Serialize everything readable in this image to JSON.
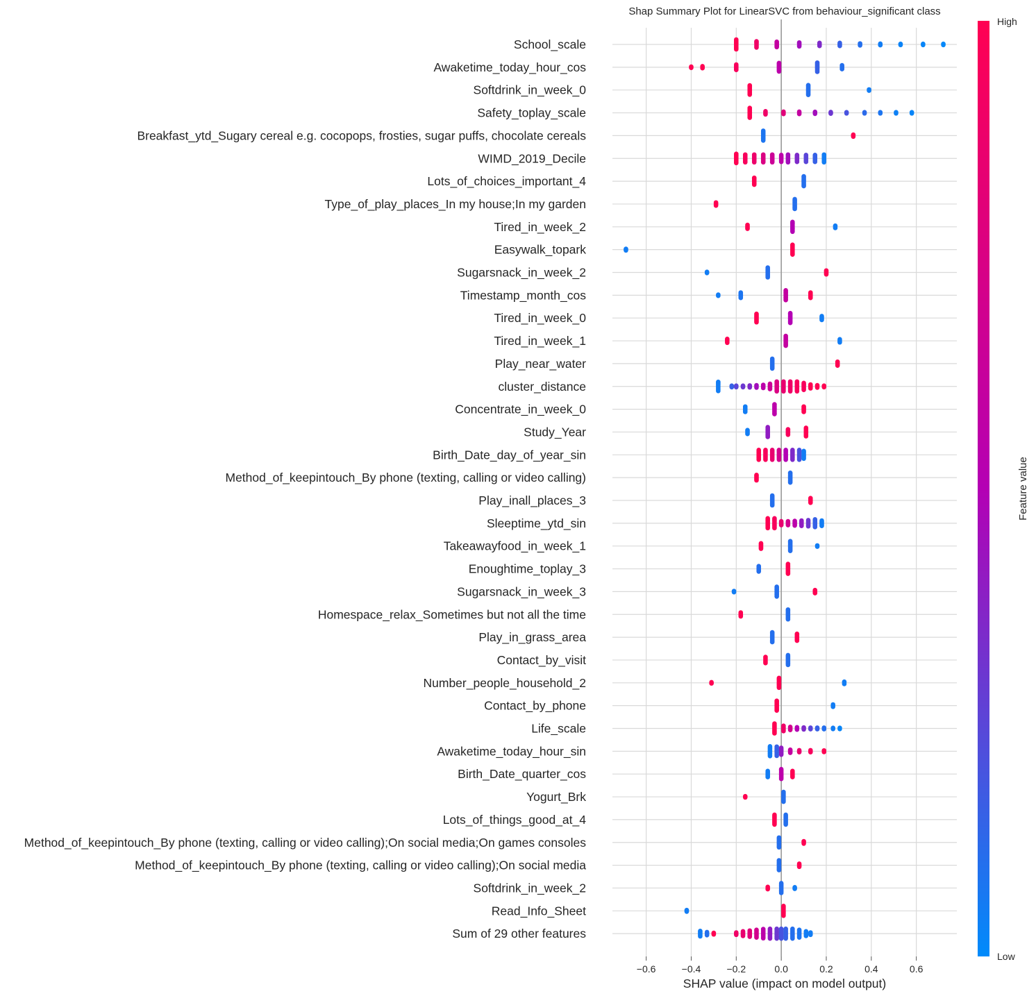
{
  "chart_data": {
    "type": "scatter",
    "subtype": "shap-beeswarm",
    "title": "Shap Summary Plot for LinearSVC from behaviour_significant class",
    "xlabel": "SHAP value (impact on model output)",
    "ylabel": "",
    "xlim": [
      -0.75,
      0.78
    ],
    "xticks": [
      -0.6,
      -0.4,
      -0.2,
      0.0,
      0.2,
      0.4,
      0.6
    ],
    "xtick_labels": [
      "−0.6",
      "−0.4",
      "−0.2",
      "0.0",
      "0.2",
      "0.4",
      "0.6"
    ],
    "grid": true,
    "colorbar": {
      "title": "Feature value",
      "high_label": "High",
      "low_label": "Low",
      "low_color": "#008bfb",
      "high_color": "#ff0052"
    },
    "features": [
      {
        "name": "School_scale",
        "points": [
          [
            -0.2,
            1,
            30
          ],
          [
            -0.11,
            0.9,
            16
          ],
          [
            -0.02,
            0.6,
            14
          ],
          [
            0.08,
            0.45,
            10
          ],
          [
            0.17,
            0.35,
            8
          ],
          [
            0.26,
            0.15,
            8
          ],
          [
            0.35,
            0.1,
            5
          ],
          [
            0.44,
            0.05,
            4
          ],
          [
            0.53,
            0.03,
            3
          ],
          [
            0.63,
            0.02,
            3
          ],
          [
            0.72,
            0.01,
            3
          ]
        ]
      },
      {
        "name": "Awaketime_today_hour_cos",
        "points": [
          [
            -0.4,
            1,
            3
          ],
          [
            -0.35,
            1,
            5
          ],
          [
            -0.2,
            0.95,
            14
          ],
          [
            -0.01,
            0.55,
            22
          ],
          [
            0.16,
            0.15,
            24
          ],
          [
            0.27,
            0.1,
            10
          ]
        ]
      },
      {
        "name": "Softdrink_in_week_0",
        "points": [
          [
            -0.14,
            1,
            24
          ],
          [
            0.12,
            0.1,
            28
          ],
          [
            0.39,
            0.05,
            3
          ]
        ]
      },
      {
        "name": "Safety_toplay_scale",
        "points": [
          [
            -0.14,
            1,
            30
          ],
          [
            -0.07,
            0.9,
            8
          ],
          [
            0.01,
            0.8,
            6
          ],
          [
            0.08,
            0.6,
            6
          ],
          [
            0.15,
            0.45,
            5
          ],
          [
            0.22,
            0.3,
            4
          ],
          [
            0.29,
            0.2,
            3
          ],
          [
            0.37,
            0.12,
            3
          ],
          [
            0.44,
            0.08,
            3
          ],
          [
            0.51,
            0.04,
            3
          ],
          [
            0.58,
            0.02,
            3
          ]
        ]
      },
      {
        "name": "Breakfast_ytd_Sugary cereal e.g. cocopops, frosties, sugar puffs, chocolate cereals",
        "points": [
          [
            -0.08,
            0.08,
            30
          ],
          [
            0.32,
            1,
            5
          ]
        ]
      },
      {
        "name": "WIMD_2019_Decile",
        "points": [
          [
            -0.2,
            1,
            24
          ],
          [
            -0.16,
            0.95,
            20
          ],
          [
            -0.12,
            0.88,
            20
          ],
          [
            -0.08,
            0.75,
            20
          ],
          [
            -0.04,
            0.65,
            20
          ],
          [
            0.0,
            0.55,
            18
          ],
          [
            0.03,
            0.45,
            20
          ],
          [
            0.07,
            0.35,
            18
          ],
          [
            0.11,
            0.25,
            18
          ],
          [
            0.15,
            0.15,
            18
          ],
          [
            0.19,
            0.05,
            20
          ]
        ]
      },
      {
        "name": "Lots_of_choices_important_4",
        "points": [
          [
            -0.12,
            1,
            18
          ],
          [
            0.1,
            0.1,
            26
          ]
        ]
      },
      {
        "name": "Type_of_play_places_In my house;In my garden",
        "points": [
          [
            -0.29,
            1,
            8
          ],
          [
            0.06,
            0.1,
            30
          ]
        ]
      },
      {
        "name": "Tired_in_week_2",
        "points": [
          [
            -0.15,
            1,
            10
          ],
          [
            0.05,
            0.5,
            28
          ],
          [
            0.24,
            0.05,
            6
          ]
        ]
      },
      {
        "name": "Easywalk_topark",
        "points": [
          [
            -0.69,
            0.05,
            4
          ],
          [
            0.05,
            1,
            30
          ]
        ]
      },
      {
        "name": "Sugarsnack_in_week_2",
        "points": [
          [
            -0.33,
            0.05,
            3
          ],
          [
            -0.06,
            0.1,
            30
          ],
          [
            0.2,
            1,
            10
          ]
        ]
      },
      {
        "name": "Timestamp_month_cos",
        "points": [
          [
            -0.28,
            0.05,
            3
          ],
          [
            -0.18,
            0.08,
            14
          ],
          [
            0.02,
            0.6,
            28
          ],
          [
            0.13,
            1,
            14
          ]
        ]
      },
      {
        "name": "Tired_in_week_0",
        "points": [
          [
            -0.11,
            1,
            22
          ],
          [
            0.04,
            0.5,
            28
          ],
          [
            0.18,
            0.05,
            10
          ]
        ]
      },
      {
        "name": "Tired_in_week_1",
        "points": [
          [
            -0.24,
            1,
            10
          ],
          [
            0.02,
            0.6,
            30
          ],
          [
            0.26,
            0.05,
            8
          ]
        ]
      },
      {
        "name": "Play_near_water",
        "points": [
          [
            -0.04,
            0.1,
            30
          ],
          [
            0.25,
            1,
            10
          ]
        ]
      },
      {
        "name": "cluster_distance",
        "points": [
          [
            -0.28,
            0.05,
            24
          ],
          [
            -0.22,
            0.15,
            4
          ],
          [
            -0.2,
            0.25,
            4
          ],
          [
            -0.17,
            0.3,
            4
          ],
          [
            -0.14,
            0.35,
            5
          ],
          [
            -0.11,
            0.45,
            6
          ],
          [
            -0.08,
            0.55,
            8
          ],
          [
            -0.05,
            0.65,
            14
          ],
          [
            -0.02,
            0.75,
            26
          ],
          [
            0.01,
            0.85,
            40
          ],
          [
            0.04,
            0.9,
            40
          ],
          [
            0.07,
            0.95,
            30
          ],
          [
            0.1,
            0.95,
            18
          ],
          [
            0.13,
            1,
            10
          ],
          [
            0.16,
            1,
            6
          ],
          [
            0.19,
            1,
            4
          ]
        ]
      },
      {
        "name": "Concentrate_in_week_0",
        "points": [
          [
            -0.16,
            0.05,
            14
          ],
          [
            -0.03,
            0.55,
            30
          ],
          [
            0.1,
            1,
            14
          ]
        ]
      },
      {
        "name": "Study_Year",
        "points": [
          [
            -0.15,
            0.05,
            10
          ],
          [
            -0.06,
            0.4,
            28
          ],
          [
            0.03,
            0.95,
            14
          ],
          [
            0.11,
            1,
            22
          ]
        ]
      },
      {
        "name": "Birth_Date_day_of_year_sin",
        "points": [
          [
            -0.1,
            1,
            40
          ],
          [
            -0.07,
            0.95,
            40
          ],
          [
            -0.04,
            0.85,
            40
          ],
          [
            -0.01,
            0.7,
            36
          ],
          [
            0.02,
            0.5,
            34
          ],
          [
            0.05,
            0.35,
            34
          ],
          [
            0.08,
            0.2,
            30
          ],
          [
            0.1,
            0.05,
            20
          ]
        ]
      },
      {
        "name": "Method_of_keepintouch_By phone (texting, calling or video calling)",
        "points": [
          [
            -0.11,
            1,
            14
          ],
          [
            0.04,
            0.1,
            30
          ]
        ]
      },
      {
        "name": "Play_inall_places_3",
        "points": [
          [
            -0.04,
            0.1,
            30
          ],
          [
            0.13,
            1,
            12
          ]
        ]
      },
      {
        "name": "Sleeptime_ytd_sin",
        "points": [
          [
            -0.06,
            1,
            40
          ],
          [
            -0.03,
            0.95,
            30
          ],
          [
            0.0,
            0.85,
            10
          ],
          [
            0.03,
            0.7,
            10
          ],
          [
            0.06,
            0.55,
            12
          ],
          [
            0.09,
            0.4,
            14
          ],
          [
            0.12,
            0.3,
            16
          ],
          [
            0.15,
            0.15,
            20
          ],
          [
            0.18,
            0.05,
            14
          ]
        ]
      },
      {
        "name": "Takeawayfood_in_week_1",
        "points": [
          [
            -0.09,
            1,
            14
          ],
          [
            0.04,
            0.1,
            30
          ],
          [
            0.16,
            0.05,
            3
          ]
        ]
      },
      {
        "name": "Enoughtime_toplay_3",
        "points": [
          [
            -0.1,
            0.1,
            14
          ],
          [
            0.03,
            1,
            30
          ]
        ]
      },
      {
        "name": "Sugarsnack_in_week_3",
        "points": [
          [
            -0.21,
            0.05,
            3
          ],
          [
            -0.02,
            0.1,
            30
          ],
          [
            0.15,
            1,
            8
          ]
        ]
      },
      {
        "name": "Homespace_relax_Sometimes but not all the time",
        "points": [
          [
            -0.18,
            1,
            10
          ],
          [
            0.03,
            0.1,
            30
          ]
        ]
      },
      {
        "name": "Play_in_grass_area",
        "points": [
          [
            -0.04,
            0.1,
            30
          ],
          [
            0.07,
            1,
            18
          ]
        ]
      },
      {
        "name": "Contact_by_visit",
        "points": [
          [
            -0.07,
            1,
            16
          ],
          [
            0.03,
            0.1,
            30
          ]
        ]
      },
      {
        "name": "Number_people_household_2",
        "points": [
          [
            -0.31,
            1,
            3
          ],
          [
            -0.01,
            1,
            30
          ],
          [
            0.28,
            0.05,
            6
          ]
        ]
      },
      {
        "name": "Contact_by_phone",
        "points": [
          [
            -0.02,
            1,
            30
          ],
          [
            0.23,
            0.05,
            6
          ]
        ]
      },
      {
        "name": "Life_scale",
        "points": [
          [
            -0.03,
            1,
            30
          ],
          [
            0.01,
            0.9,
            14
          ],
          [
            0.04,
            0.7,
            8
          ],
          [
            0.07,
            0.5,
            6
          ],
          [
            0.1,
            0.35,
            5
          ],
          [
            0.13,
            0.25,
            4
          ],
          [
            0.16,
            0.15,
            4
          ],
          [
            0.19,
            0.1,
            4
          ],
          [
            0.23,
            0.05,
            3
          ],
          [
            0.26,
            0.02,
            3
          ]
        ]
      },
      {
        "name": "Awaketime_today_hour_sin",
        "points": [
          [
            -0.05,
            0.05,
            30
          ],
          [
            -0.02,
            0.15,
            24
          ],
          [
            0.0,
            0.4,
            18
          ],
          [
            0.04,
            0.6,
            8
          ],
          [
            0.08,
            0.85,
            5
          ],
          [
            0.13,
            0.95,
            5
          ],
          [
            0.19,
            1,
            4
          ]
        ]
      },
      {
        "name": "Birth_Date_quarter_cos",
        "points": [
          [
            -0.06,
            0.05,
            16
          ],
          [
            0.0,
            0.55,
            30
          ],
          [
            0.05,
            1,
            16
          ]
        ]
      },
      {
        "name": "Yogurt_Brk",
        "points": [
          [
            -0.16,
            1,
            3
          ],
          [
            0.01,
            0.1,
            30
          ]
        ]
      },
      {
        "name": "Lots_of_things_good_at_4",
        "points": [
          [
            -0.03,
            1,
            26
          ],
          [
            0.02,
            0.1,
            30
          ]
        ]
      },
      {
        "name": "Method_of_keepintouch_By phone (texting, calling or video calling);On social media;On games consoles",
        "points": [
          [
            -0.01,
            0.1,
            30
          ],
          [
            0.1,
            1,
            6
          ]
        ]
      },
      {
        "name": "Method_of_keepintouch_By phone (texting, calling or video calling);On social media",
        "points": [
          [
            -0.01,
            0.1,
            30
          ],
          [
            0.08,
            1,
            8
          ]
        ]
      },
      {
        "name": "Softdrink_in_week_2",
        "points": [
          [
            -0.06,
            1,
            6
          ],
          [
            0.0,
            0.1,
            30
          ],
          [
            0.06,
            0.05,
            4
          ]
        ]
      },
      {
        "name": "Read_Info_Sheet",
        "points": [
          [
            -0.42,
            0.05,
            4
          ],
          [
            0.01,
            1,
            30
          ]
        ]
      },
      {
        "name": "Sum of 29 other features",
        "points": [
          [
            -0.36,
            0.05,
            14
          ],
          [
            -0.33,
            0.1,
            8
          ],
          [
            -0.3,
            1,
            4
          ],
          [
            -0.2,
            0.9,
            6
          ],
          [
            -0.17,
            0.85,
            12
          ],
          [
            -0.14,
            0.8,
            16
          ],
          [
            -0.11,
            0.7,
            20
          ],
          [
            -0.08,
            0.55,
            24
          ],
          [
            -0.05,
            0.4,
            30
          ],
          [
            -0.02,
            0.3,
            36
          ],
          [
            0.0,
            0.2,
            44
          ],
          [
            0.02,
            0.15,
            40
          ],
          [
            0.05,
            0.1,
            30
          ],
          [
            0.08,
            0.08,
            20
          ],
          [
            0.11,
            0.05,
            12
          ],
          [
            0.13,
            0.05,
            6
          ]
        ]
      }
    ]
  }
}
